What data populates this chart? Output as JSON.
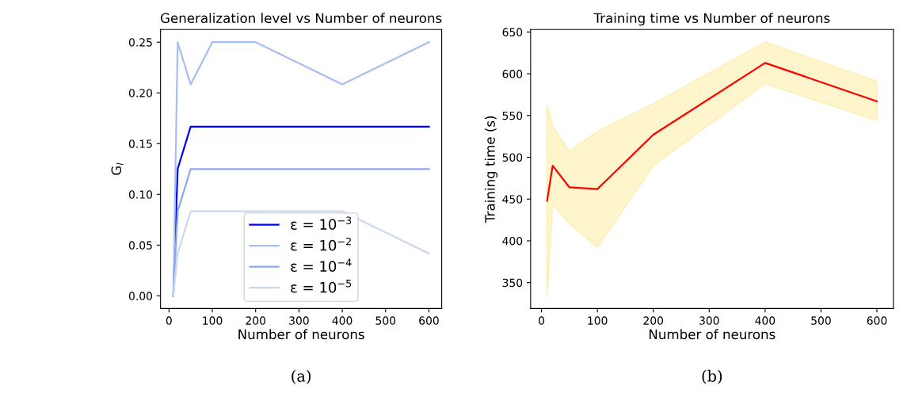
{
  "chart_data": [
    {
      "type": "line",
      "title": "Generalization level vs Number of neurons",
      "xlabel": "Number of neurons",
      "ylabel": "G$_{l}$",
      "x": [
        10,
        20,
        50,
        100,
        200,
        400,
        600
      ],
      "series": [
        {
          "name": "ε = 10$^{−3}$",
          "color": "#0000ff",
          "values": [
            0,
            0.125,
            0.1667,
            0.1667,
            0.1667,
            0.1667,
            0.1667
          ]
        },
        {
          "name": "ε = 10$^{−2}$",
          "color": "#a4bff2",
          "values": [
            0,
            0.25,
            0.2083,
            0.25,
            0.25,
            0.2083,
            0.25
          ]
        },
        {
          "name": "ε = 10$^{−4}$",
          "color": "#8da8ea",
          "values": [
            0,
            0.0833,
            0.125,
            0.125,
            0.125,
            0.125,
            0.125
          ]
        },
        {
          "name": "ε = 10$^{−5}$",
          "color": "#cbd7ee",
          "values": [
            0,
            0.0417,
            0.0833,
            0.0833,
            0.0833,
            0.0833,
            0.0417
          ]
        }
      ],
      "xlim": [
        -19.5,
        629.5
      ],
      "ylim": [
        -0.0125,
        0.2625
      ],
      "xticks": [
        0,
        100,
        200,
        300,
        400,
        500,
        600
      ],
      "yticks": [
        {
          "value": 0,
          "label": "0.00"
        },
        0.05,
        {
          "value": 0.1,
          "label": "0.10"
        },
        0.15,
        {
          "value": 0.2,
          "label": "0.20"
        },
        0.25
      ],
      "legend": "bottom",
      "grid": false,
      "annotations": [
        "(a)"
      ]
    },
    {
      "type": "line",
      "title": "Training time vs Number of neurons",
      "xlabel": "Number of neurons",
      "ylabel": "Training time (s)",
      "x": [
        10,
        20,
        50,
        100,
        200,
        400,
        600
      ],
      "series": [
        {
          "color": "#ff0000",
          "values": [
            448,
            490,
            464,
            462,
            527,
            613,
            567
          ],
          "lower": [
            334,
            443,
            421,
            392,
            490,
            588,
            544
          ],
          "upper": [
            562,
            537,
            507,
            531,
            564,
            638,
            591
          ]
        }
      ],
      "xlim": [
        -19.5,
        629.5
      ],
      "ylim": [
        319,
        653
      ],
      "xticks": [
        0,
        100,
        200,
        300,
        400,
        500,
        600
      ],
      "yticks": [
        350,
        400,
        450,
        500,
        550,
        600,
        650
      ],
      "legend": false,
      "grid": false,
      "annotations": [
        "(b)"
      ]
    }
  ]
}
